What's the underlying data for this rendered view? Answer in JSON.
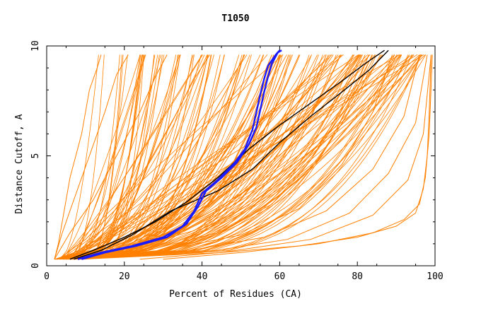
{
  "chart_data": {
    "type": "line",
    "title": "T1050",
    "xlabel": "Percent of Residues (CA)",
    "ylabel": "Distance Cutoff, A",
    "xlim": [
      0,
      100
    ],
    "ylim": [
      0,
      10
    ],
    "x_ticks": [
      0,
      20,
      40,
      60,
      80,
      100
    ],
    "x_tick_labels": [
      "0",
      "20",
      "40",
      "60",
      "80",
      "100"
    ],
    "y_ticks": [
      0,
      5,
      10
    ],
    "y_tick_labels": [
      "0",
      "5",
      "10"
    ],
    "grid": false,
    "legend": "none",
    "colors": {
      "bulk": "#ff8000",
      "highlight": "#1a1aff",
      "reference": "#000000",
      "axes": "#000000",
      "background": "#ffffff"
    },
    "series": [
      {
        "color": "#ff8000",
        "x": [
          2,
          3,
          4,
          6,
          9,
          11,
          13,
          14
        ],
        "y": [
          0.3,
          1,
          2,
          4,
          6,
          8,
          9,
          9.6
        ]
      },
      {
        "color": "#ff8000",
        "x": [
          2,
          4,
          7,
          11,
          15,
          18,
          21
        ],
        "y": [
          0.3,
          1.5,
          3,
          5,
          7,
          8.7,
          9.6
        ]
      },
      {
        "color": "#ff8000",
        "x": [
          2,
          6,
          12,
          18,
          24,
          28,
          31
        ],
        "y": [
          0.3,
          1.5,
          3,
          5,
          7,
          8.6,
          9.6
        ]
      },
      {
        "color": "#ff8000",
        "x": [
          3,
          10,
          18,
          26,
          33,
          38,
          42
        ],
        "y": [
          0.3,
          1.2,
          2.6,
          4.6,
          6.8,
          8.5,
          9.6
        ]
      },
      {
        "color": "#ff8000",
        "x": [
          4,
          14,
          24,
          33,
          41,
          47,
          51
        ],
        "y": [
          0.3,
          1,
          2.2,
          4,
          6.3,
          8.2,
          9.6
        ]
      },
      {
        "color": "#ff8000",
        "x": [
          4,
          18,
          30,
          40,
          48,
          54,
          58
        ],
        "y": [
          0.3,
          0.9,
          1.9,
          3.5,
          5.8,
          7.9,
          9.6
        ]
      },
      {
        "color": "#ff8000",
        "x": [
          5,
          20,
          34,
          45,
          54,
          60,
          65
        ],
        "y": [
          0.3,
          0.8,
          1.7,
          3.2,
          5.5,
          7.6,
          9.6
        ]
      },
      {
        "color": "#ff8000",
        "x": [
          5,
          22,
          38,
          50,
          60,
          67,
          72
        ],
        "y": [
          0.3,
          0.8,
          1.6,
          3,
          5.2,
          7.4,
          9.6
        ]
      },
      {
        "color": "#ff8000",
        "x": [
          6,
          26,
          44,
          58,
          68,
          76,
          82
        ],
        "y": [
          0.3,
          0.7,
          1.5,
          2.8,
          4.8,
          7.2,
          9.6
        ]
      },
      {
        "color": "#ff8000",
        "x": [
          6,
          30,
          50,
          65,
          76,
          84,
          89
        ],
        "y": [
          0.3,
          0.7,
          1.4,
          2.6,
          4.6,
          7,
          9.6
        ]
      },
      {
        "color": "#ff8000",
        "x": [
          7,
          34,
          56,
          72,
          84,
          92,
          96
        ],
        "y": [
          0.3,
          0.6,
          1.3,
          2.5,
          4.4,
          6.8,
          9.6
        ]
      },
      {
        "color": "#ff8000",
        "x": [
          8,
          40,
          62,
          78,
          88,
          95,
          98
        ],
        "y": [
          0.3,
          0.6,
          1.2,
          2.4,
          4.2,
          6.5,
          9.6
        ]
      },
      {
        "color": "#ff8000",
        "x": [
          9,
          45,
          68,
          84,
          93,
          97,
          99
        ],
        "y": [
          0.3,
          0.6,
          1.2,
          2.3,
          3.9,
          6,
          9.6
        ]
      },
      {
        "color": "#ff8000",
        "x": [
          24,
          45,
          65,
          80,
          90,
          95,
          97,
          98,
          98.5,
          99
        ],
        "y": [
          0.3,
          0.6,
          0.9,
          1.3,
          1.8,
          2.4,
          3.5,
          5,
          7,
          9.6
        ]
      },
      {
        "color": "#ff8000",
        "x": [
          30,
          50,
          70,
          84,
          92,
          96,
          97.5,
          98.5,
          99.3
        ],
        "y": [
          0.3,
          0.6,
          1,
          1.5,
          2.1,
          2.8,
          4,
          6,
          9.6
        ]
      },
      {
        "color": "#000000",
        "x": [
          7,
          14,
          22,
          32,
          44,
          53,
          60,
          68,
          76,
          83,
          88
        ],
        "y": [
          0.3,
          0.7,
          1.4,
          2.5,
          3.4,
          4.4,
          5.6,
          6.8,
          7.9,
          8.9,
          9.8
        ]
      },
      {
        "color": "#000000",
        "x": [
          6,
          12,
          20,
          28,
          36,
          44,
          52,
          60,
          68,
          76,
          82,
          87
        ],
        "y": [
          0.3,
          0.7,
          1.3,
          2,
          2.9,
          4,
          5.3,
          6.4,
          7.4,
          8.4,
          9.2,
          9.8
        ]
      },
      {
        "color": "#1a1aff",
        "x": [
          8,
          14,
          22,
          30,
          35,
          38,
          40,
          44,
          48,
          51,
          53,
          54,
          55,
          56,
          57,
          59,
          60
        ],
        "y": [
          0.3,
          0.6,
          0.9,
          1.3,
          1.8,
          2.5,
          3.3,
          3.9,
          4.6,
          5.3,
          6.2,
          7,
          7.8,
          8.5,
          9.1,
          9.6,
          9.8
        ]
      },
      {
        "color": "#1a1aff",
        "x": [
          9,
          15,
          23,
          31,
          36,
          39,
          41,
          45,
          49,
          52,
          54,
          55,
          56,
          57,
          58,
          59.5,
          60.5
        ],
        "y": [
          0.3,
          0.6,
          0.9,
          1.3,
          1.9,
          2.7,
          3.4,
          4,
          4.7,
          5.5,
          6.3,
          7.1,
          7.9,
          8.6,
          9.2,
          9.7,
          9.8
        ]
      }
    ]
  }
}
